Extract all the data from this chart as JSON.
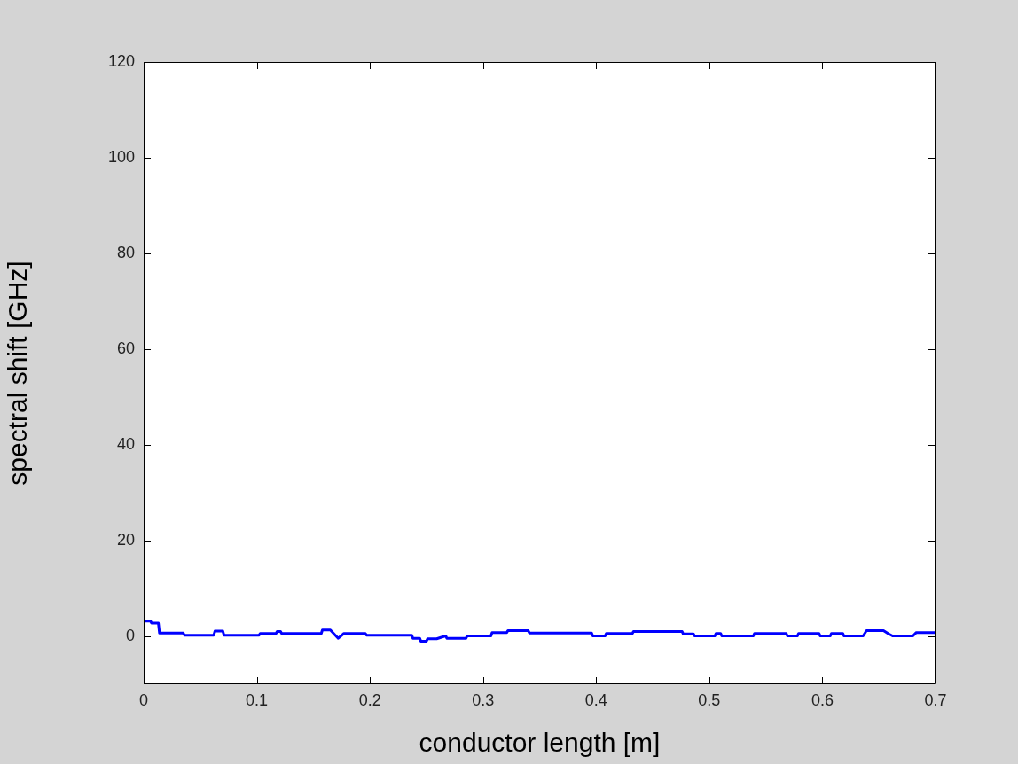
{
  "chart_data": {
    "type": "line",
    "xlabel": "conductor length [m]",
    "ylabel": "spectral shift [GHz]",
    "x": [
      0,
      0.006,
      0.007,
      0.013,
      0.014,
      0.035,
      0.036,
      0.062,
      0.063,
      0.07,
      0.071,
      0.102,
      0.103,
      0.117,
      0.118,
      0.121,
      0.122,
      0.157,
      0.158,
      0.165,
      0.172,
      0.177,
      0.196,
      0.197,
      0.237,
      0.238,
      0.244,
      0.245,
      0.25,
      0.251,
      0.259,
      0.267,
      0.268,
      0.285,
      0.286,
      0.307,
      0.308,
      0.321,
      0.322,
      0.34,
      0.341,
      0.396,
      0.397,
      0.408,
      0.409,
      0.432,
      0.433,
      0.476,
      0.477,
      0.486,
      0.487,
      0.505,
      0.506,
      0.51,
      0.511,
      0.539,
      0.54,
      0.568,
      0.569,
      0.578,
      0.579,
      0.597,
      0.598,
      0.607,
      0.608,
      0.618,
      0.619,
      0.636,
      0.639,
      0.654,
      0.658,
      0.662,
      0.68,
      0.683,
      0.7
    ],
    "series": [
      {
        "color": "#0000ff",
        "values": [
          3.2,
          3.2,
          2.8,
          2.8,
          0.7,
          0.7,
          0.25,
          0.25,
          1.1,
          1.1,
          0.25,
          0.25,
          0.6,
          0.6,
          1,
          1,
          0.6,
          0.6,
          1.35,
          1.35,
          -0.4,
          0.6,
          0.6,
          0.25,
          0.25,
          -0.4,
          -0.4,
          -1,
          -1,
          -0.5,
          -0.5,
          0.1,
          -0.4,
          -0.4,
          0.1,
          0.1,
          0.8,
          0.8,
          1.2,
          1.2,
          0.7,
          0.7,
          0.1,
          0.1,
          0.6,
          0.6,
          1,
          1,
          0.5,
          0.5,
          0.1,
          0.1,
          0.6,
          0.6,
          0.1,
          0.1,
          0.6,
          0.6,
          0.1,
          0.1,
          0.6,
          0.6,
          0.1,
          0.1,
          0.6,
          0.6,
          0.1,
          0.1,
          1.2,
          1.2,
          0.6,
          0.1,
          0.1,
          0.8,
          0.8
        ]
      }
    ],
    "xlim": [
      0,
      0.7
    ],
    "xticks": [
      0,
      0.1,
      0.2,
      0.3,
      0.4,
      0.5,
      0.6,
      0.7
    ],
    "ylim": [
      -10,
      120
    ],
    "yticks": [
      0,
      20,
      40,
      60,
      80,
      100,
      120
    ],
    "legend": false,
    "marker": "none",
    "line_style": "solid"
  }
}
